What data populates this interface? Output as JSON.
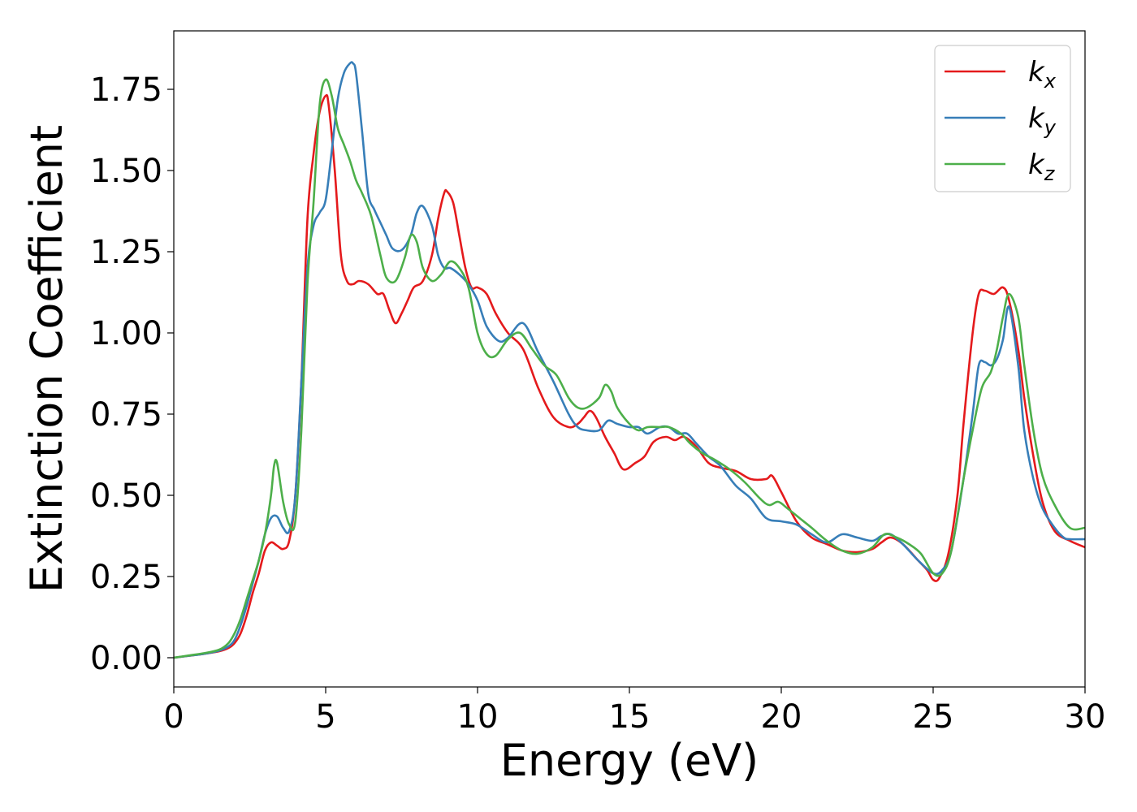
{
  "chart_data": {
    "type": "line",
    "xlabel": "Energy (eV)",
    "ylabel": "Extinction Coefficient",
    "xlim": [
      0,
      30
    ],
    "ylim": [
      -0.09,
      1.93
    ],
    "xticks": [
      0,
      5,
      10,
      15,
      20,
      25,
      30
    ],
    "yticks": [
      0.0,
      0.25,
      0.5,
      0.75,
      1.0,
      1.25,
      1.5,
      1.75
    ],
    "xtick_labels": [
      "0",
      "5",
      "10",
      "15",
      "20",
      "25",
      "30"
    ],
    "ytick_labels": [
      "0.00",
      "0.25",
      "0.50",
      "0.75",
      "1.00",
      "1.25",
      "1.50",
      "1.75"
    ],
    "grid": false,
    "legend_position": "top-right",
    "series": [
      {
        "name": "k_x",
        "label_base": "k",
        "label_sub": "x",
        "color": "#e41a1c",
        "x": [
          0,
          0.5,
          1,
          1.5,
          1.8,
          2,
          2.2,
          2.4,
          2.6,
          2.8,
          3,
          3.2,
          3.4,
          3.6,
          3.8,
          4,
          4.2,
          4.4,
          4.6,
          4.8,
          5,
          5.1,
          5.3,
          5.5,
          5.7,
          5.9,
          6.1,
          6.4,
          6.7,
          6.9,
          7.1,
          7.3,
          7.5,
          7.7,
          7.9,
          8.2,
          8.5,
          8.7,
          8.9,
          9,
          9.2,
          9.4,
          9.6,
          9.8,
          10,
          10.3,
          10.6,
          11,
          11.5,
          12,
          12.5,
          13,
          13.3,
          13.5,
          13.7,
          13.9,
          14.2,
          14.5,
          14.8,
          15.2,
          15.5,
          15.8,
          16.2,
          16.5,
          16.8,
          17.2,
          17.6,
          18,
          18.5,
          19,
          19.5,
          19.7,
          20,
          20.5,
          21,
          21.5,
          22,
          22.5,
          23,
          23.3,
          23.6,
          24,
          24.5,
          24.8,
          25,
          25.2,
          25.5,
          25.8,
          26,
          26.3,
          26.5,
          26.7,
          27,
          27.3,
          27.5,
          27.8,
          28,
          28.3,
          28.6,
          29,
          29.5,
          30
        ],
        "values": [
          0,
          0.006,
          0.012,
          0.02,
          0.03,
          0.045,
          0.075,
          0.13,
          0.2,
          0.26,
          0.33,
          0.355,
          0.345,
          0.335,
          0.36,
          0.5,
          0.85,
          1.35,
          1.55,
          1.68,
          1.73,
          1.7,
          1.5,
          1.24,
          1.16,
          1.15,
          1.16,
          1.15,
          1.12,
          1.12,
          1.07,
          1.03,
          1.06,
          1.1,
          1.14,
          1.16,
          1.24,
          1.35,
          1.43,
          1.435,
          1.4,
          1.3,
          1.2,
          1.14,
          1.14,
          1.12,
          1.06,
          1.0,
          0.95,
          0.83,
          0.74,
          0.71,
          0.72,
          0.74,
          0.76,
          0.74,
          0.68,
          0.63,
          0.58,
          0.6,
          0.62,
          0.665,
          0.68,
          0.67,
          0.68,
          0.65,
          0.6,
          0.585,
          0.575,
          0.55,
          0.55,
          0.56,
          0.51,
          0.42,
          0.37,
          0.35,
          0.33,
          0.325,
          0.335,
          0.355,
          0.37,
          0.35,
          0.3,
          0.27,
          0.24,
          0.245,
          0.32,
          0.5,
          0.72,
          1.0,
          1.12,
          1.13,
          1.12,
          1.14,
          1.1,
          0.95,
          0.8,
          0.62,
          0.48,
          0.39,
          0.36,
          0.34
        ]
      },
      {
        "name": "k_y",
        "label_base": "k",
        "label_sub": "y",
        "color": "#377eb8",
        "x": [
          0,
          0.5,
          1,
          1.5,
          1.8,
          2,
          2.2,
          2.4,
          2.6,
          2.8,
          3,
          3.2,
          3.4,
          3.6,
          3.8,
          4,
          4.2,
          4.4,
          4.6,
          4.8,
          5,
          5.2,
          5.4,
          5.6,
          5.8,
          5.9,
          6,
          6.2,
          6.4,
          6.6,
          6.8,
          7,
          7.2,
          7.5,
          7.8,
          8,
          8.2,
          8.5,
          8.7,
          8.9,
          9.1,
          9.4,
          9.7,
          10,
          10.3,
          10.7,
          11,
          11.5,
          12,
          12.5,
          13,
          13.3,
          13.6,
          14,
          14.3,
          14.6,
          15,
          15.3,
          15.6,
          16,
          16.3,
          16.6,
          16.9,
          17.2,
          17.6,
          18,
          18.5,
          19,
          19.5,
          20,
          20.5,
          21,
          21.5,
          22,
          22.5,
          23,
          23.3,
          23.6,
          24,
          24.5,
          25,
          25.3,
          25.6,
          26,
          26.3,
          26.5,
          26.7,
          26.9,
          27.1,
          27.3,
          27.5,
          27.8,
          28,
          28.3,
          28.6,
          29,
          29.3,
          29.5,
          30
        ],
        "values": [
          0,
          0.006,
          0.012,
          0.022,
          0.035,
          0.055,
          0.1,
          0.16,
          0.23,
          0.3,
          0.38,
          0.43,
          0.435,
          0.4,
          0.39,
          0.5,
          0.85,
          1.2,
          1.33,
          1.37,
          1.41,
          1.56,
          1.72,
          1.8,
          1.83,
          1.83,
          1.8,
          1.62,
          1.43,
          1.38,
          1.34,
          1.3,
          1.26,
          1.255,
          1.3,
          1.37,
          1.39,
          1.33,
          1.24,
          1.2,
          1.2,
          1.18,
          1.15,
          1.1,
          1.02,
          0.975,
          0.985,
          1.03,
          0.94,
          0.85,
          0.75,
          0.71,
          0.7,
          0.7,
          0.73,
          0.72,
          0.71,
          0.71,
          0.69,
          0.71,
          0.71,
          0.69,
          0.69,
          0.66,
          0.62,
          0.59,
          0.53,
          0.49,
          0.43,
          0.42,
          0.41,
          0.38,
          0.355,
          0.38,
          0.37,
          0.36,
          0.375,
          0.38,
          0.35,
          0.3,
          0.26,
          0.27,
          0.33,
          0.55,
          0.75,
          0.9,
          0.91,
          0.9,
          0.92,
          0.98,
          1.08,
          0.9,
          0.7,
          0.55,
          0.46,
          0.4,
          0.37,
          0.365,
          0.365
        ]
      },
      {
        "name": "k_z",
        "label_base": "k",
        "label_sub": "z",
        "color": "#4daf4a",
        "x": [
          0,
          0.5,
          1,
          1.5,
          1.8,
          2,
          2.2,
          2.4,
          2.6,
          2.8,
          3,
          3.2,
          3.3,
          3.4,
          3.6,
          3.8,
          4,
          4.2,
          4.4,
          4.6,
          4.8,
          5,
          5.2,
          5.4,
          5.6,
          5.8,
          6,
          6.2,
          6.5,
          6.8,
          7,
          7.3,
          7.6,
          7.8,
          8,
          8.2,
          8.5,
          8.8,
          9.1,
          9.4,
          9.7,
          10,
          10.3,
          10.6,
          11,
          11.4,
          11.8,
          12.2,
          12.6,
          13,
          13.3,
          13.6,
          14,
          14.2,
          14.4,
          14.6,
          15,
          15.3,
          15.6,
          16,
          16.3,
          16.7,
          17,
          17.4,
          17.8,
          18.3,
          18.8,
          19.3,
          19.6,
          19.9,
          20.2,
          20.6,
          21,
          21.5,
          22,
          22.5,
          23,
          23.4,
          23.8,
          24.2,
          24.6,
          25,
          25.3,
          25.6,
          26,
          26.3,
          26.6,
          26.9,
          27.1,
          27.3,
          27.5,
          27.8,
          28,
          28.3,
          28.6,
          29,
          29.5,
          30
        ],
        "values": [
          0,
          0.007,
          0.014,
          0.025,
          0.045,
          0.075,
          0.12,
          0.18,
          0.24,
          0.3,
          0.38,
          0.5,
          0.59,
          0.6,
          0.48,
          0.41,
          0.42,
          0.7,
          1.15,
          1.4,
          1.7,
          1.78,
          1.73,
          1.63,
          1.58,
          1.53,
          1.47,
          1.43,
          1.36,
          1.24,
          1.17,
          1.16,
          1.23,
          1.3,
          1.28,
          1.2,
          1.16,
          1.18,
          1.22,
          1.2,
          1.14,
          1.0,
          0.935,
          0.93,
          0.98,
          1.0,
          0.95,
          0.9,
          0.87,
          0.8,
          0.77,
          0.77,
          0.8,
          0.84,
          0.82,
          0.77,
          0.72,
          0.7,
          0.71,
          0.71,
          0.71,
          0.69,
          0.66,
          0.63,
          0.61,
          0.58,
          0.54,
          0.49,
          0.47,
          0.48,
          0.46,
          0.43,
          0.4,
          0.36,
          0.33,
          0.32,
          0.34,
          0.38,
          0.37,
          0.35,
          0.32,
          0.26,
          0.26,
          0.33,
          0.55,
          0.7,
          0.83,
          0.88,
          0.95,
          1.05,
          1.12,
          1.05,
          0.9,
          0.7,
          0.56,
          0.47,
          0.4,
          0.4
        ]
      }
    ]
  }
}
